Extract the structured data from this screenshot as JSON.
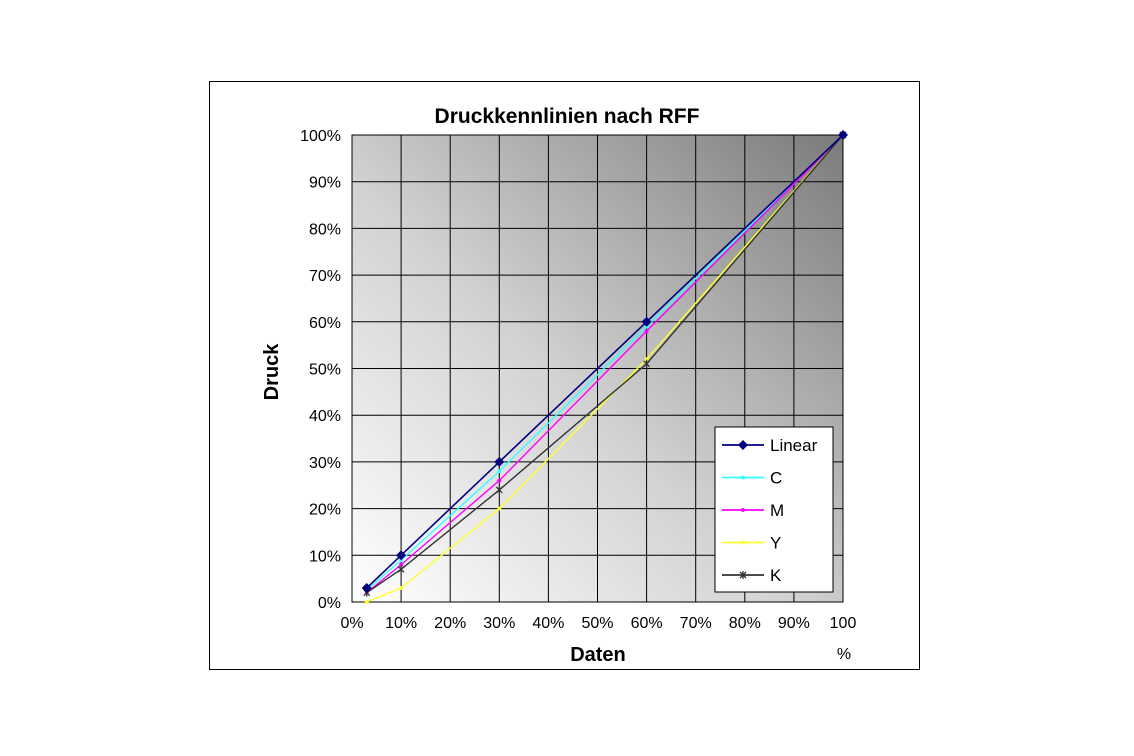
{
  "chart_data": {
    "type": "line",
    "title": "Druckkennlinien nach RFF",
    "xlabel": "Daten",
    "ylabel": "Druck",
    "x_unit": "%",
    "xlim": [
      0,
      100
    ],
    "ylim": [
      0,
      100
    ],
    "x_tick_labels": [
      "0%",
      "10%",
      "20%",
      "30%",
      "40%",
      "50%",
      "60%",
      "70%",
      "80%",
      "90%",
      "100"
    ],
    "y_tick_labels": [
      "0%",
      "10%",
      "20%",
      "30%",
      "40%",
      "50%",
      "60%",
      "70%",
      "80%",
      "90%",
      "100%"
    ],
    "grid": true,
    "legend_position": "bottom-right",
    "series": [
      {
        "name": "Linear",
        "color": "#000080",
        "marker": "diamond",
        "points": [
          [
            3,
            3
          ],
          [
            10,
            10
          ],
          [
            30,
            30
          ],
          [
            60,
            60
          ],
          [
            100,
            100
          ]
        ]
      },
      {
        "name": "C",
        "color": "#33ffff",
        "marker": "small",
        "points": [
          [
            3,
            2.5
          ],
          [
            10,
            9
          ],
          [
            30,
            28
          ],
          [
            60,
            59
          ],
          [
            100,
            100
          ]
        ]
      },
      {
        "name": "M",
        "color": "#ff00ff",
        "marker": "small",
        "points": [
          [
            3,
            2
          ],
          [
            10,
            8
          ],
          [
            30,
            26
          ],
          [
            60,
            58
          ],
          [
            100,
            100
          ]
        ]
      },
      {
        "name": "Y",
        "color": "#ffff33",
        "marker": "small",
        "points": [
          [
            3,
            0
          ],
          [
            10,
            3
          ],
          [
            30,
            20
          ],
          [
            60,
            52
          ],
          [
            100,
            100
          ]
        ]
      },
      {
        "name": "K",
        "color": "#333333",
        "marker": "star",
        "points": [
          [
            3,
            2
          ],
          [
            10,
            7
          ],
          [
            30,
            24
          ],
          [
            60,
            51
          ],
          [
            100,
            100
          ]
        ]
      }
    ]
  }
}
